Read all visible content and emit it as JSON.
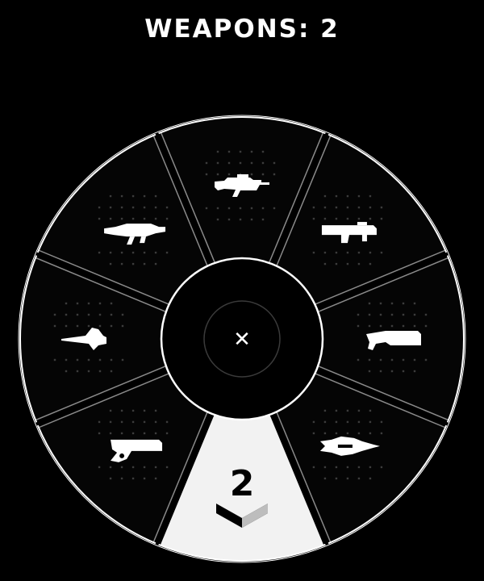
{
  "header": {
    "title": "WEAPONS: 2"
  },
  "wheel": {
    "center_icon": "close-icon",
    "center_glyph": "✕",
    "colors": {
      "background": "#000000",
      "segment": "#050505",
      "stroke": "#ffffff",
      "selected": "#f2f2f2",
      "divider": "#8a8a8a"
    },
    "slots": [
      {
        "name": "assault-rifle",
        "icon": "assault-rifle-icon",
        "selected": false
      },
      {
        "name": "rocket-launcher",
        "icon": "rocket-launcher-icon",
        "selected": false
      },
      {
        "name": "shotgun",
        "icon": "shotgun-icon",
        "selected": false
      },
      {
        "name": "needler",
        "icon": "needler-icon",
        "selected": false
      },
      {
        "name": "selected-slot",
        "icon": "chevron-rank-icon",
        "selected": true,
        "badge": "2"
      },
      {
        "name": "plasma-pistol",
        "icon": "plasma-pistol-icon",
        "selected": false
      },
      {
        "name": "energy-sword",
        "icon": "energy-sword-icon",
        "selected": false
      },
      {
        "name": "brute-shot",
        "icon": "brute-shot-icon",
        "selected": false
      }
    ]
  }
}
